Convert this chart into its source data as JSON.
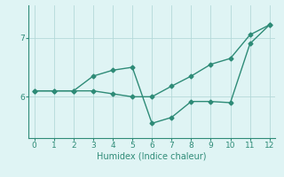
{
  "line1_x": [
    0,
    1,
    2,
    3,
    4,
    5,
    6,
    7,
    8,
    9,
    10,
    11,
    12
  ],
  "line1_y": [
    6.1,
    6.1,
    6.1,
    6.35,
    6.45,
    6.5,
    5.55,
    5.65,
    5.92,
    5.92,
    5.9,
    6.9,
    7.22
  ],
  "line2_x": [
    0,
    1,
    2,
    3,
    4,
    5,
    6,
    7,
    8,
    9,
    10,
    11,
    12
  ],
  "line2_y": [
    6.1,
    6.1,
    6.1,
    6.1,
    6.05,
    6.0,
    6.0,
    6.18,
    6.35,
    6.55,
    6.65,
    7.05,
    7.22
  ],
  "line_color": "#2e8b77",
  "marker": "D",
  "marker_size": 2.5,
  "xlabel": "Humidex (Indice chaleur)",
  "xlabel_fontsize": 7,
  "yticks": [
    6,
    7
  ],
  "xticks": [
    0,
    1,
    2,
    3,
    4,
    5,
    6,
    7,
    8,
    9,
    10,
    11,
    12
  ],
  "xlim": [
    -0.3,
    12.3
  ],
  "ylim": [
    5.3,
    7.55
  ],
  "background_color": "#dff4f4",
  "grid_color": "#b5d9d9",
  "tick_fontsize": 6.5,
  "linewidth": 1.0
}
